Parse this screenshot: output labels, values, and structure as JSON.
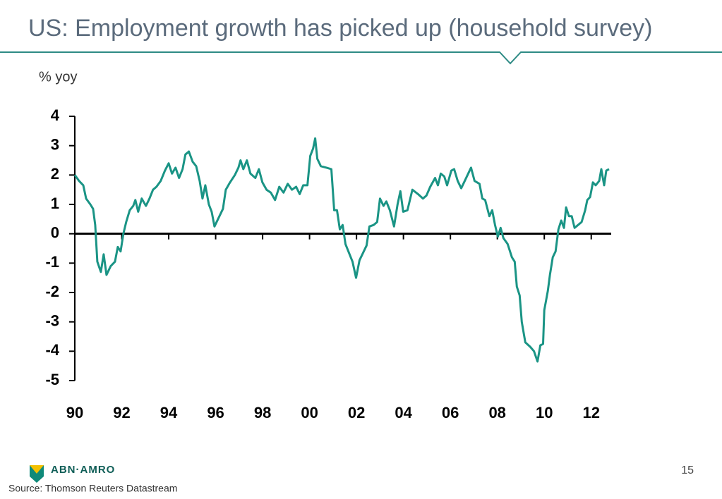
{
  "slide": {
    "logo": "ABN·AMRO",
    "page_number": "15",
    "source": "Source: Thomson Reuters Datastream"
  },
  "chart_data": {
    "type": "line",
    "title": "US: Employment growth has picked up (household survey)",
    "y_label": "% yoy",
    "color": "#1a9485",
    "xlim": [
      1990,
      2012.85
    ],
    "ylim": [
      -5,
      4
    ],
    "yticks": [
      -5,
      -4,
      -3,
      -2,
      -1,
      0,
      1,
      2,
      3,
      4
    ],
    "xticks": [
      {
        "value": 1990,
        "label": "90"
      },
      {
        "value": 1992,
        "label": "92"
      },
      {
        "value": 1994,
        "label": "94"
      },
      {
        "value": 1996,
        "label": "96"
      },
      {
        "value": 1998,
        "label": "98"
      },
      {
        "value": 2000,
        "label": "00"
      },
      {
        "value": 2002,
        "label": "02"
      },
      {
        "value": 2004,
        "label": "04"
      },
      {
        "value": 2006,
        "label": "06"
      },
      {
        "value": 2008,
        "label": "08"
      },
      {
        "value": 2010,
        "label": "10"
      },
      {
        "value": 2012,
        "label": "12"
      }
    ],
    "x": [
      1990.0,
      1990.18,
      1990.36,
      1990.48,
      1990.66,
      1990.78,
      1990.87,
      1990.96,
      1991.11,
      1991.23,
      1991.35,
      1991.53,
      1991.71,
      1991.83,
      1991.95,
      1992.07,
      1992.19,
      1992.34,
      1992.49,
      1992.58,
      1992.7,
      1992.85,
      1993.03,
      1993.18,
      1993.33,
      1993.48,
      1993.66,
      1993.84,
      1994.0,
      1994.14,
      1994.29,
      1994.44,
      1994.59,
      1994.71,
      1994.86,
      1995.02,
      1995.17,
      1995.32,
      1995.44,
      1995.56,
      1995.71,
      1995.83,
      1995.95,
      1996.13,
      1996.31,
      1996.43,
      1996.61,
      1996.82,
      1996.97,
      1997.06,
      1997.18,
      1997.33,
      1997.48,
      1997.69,
      1997.84,
      1997.99,
      1998.17,
      1998.35,
      1998.53,
      1998.71,
      1998.89,
      1999.07,
      1999.25,
      1999.43,
      1999.58,
      1999.73,
      1999.91,
      2000.03,
      2000.15,
      2000.24,
      2000.33,
      2000.48,
      2000.72,
      2000.93,
      2001.05,
      2001.17,
      2001.29,
      2001.41,
      2001.53,
      2001.68,
      2001.83,
      2001.98,
      2002.13,
      2002.28,
      2002.43,
      2002.55,
      2002.73,
      2002.88,
      2003.0,
      2003.15,
      2003.27,
      2003.42,
      2003.6,
      2003.75,
      2003.87,
      2003.99,
      2004.17,
      2004.38,
      2004.62,
      2004.83,
      2004.98,
      2005.14,
      2005.35,
      2005.47,
      2005.59,
      2005.74,
      2005.86,
      2006.04,
      2006.16,
      2006.31,
      2006.46,
      2006.61,
      2006.76,
      2006.88,
      2007.03,
      2007.24,
      2007.36,
      2007.48,
      2007.66,
      2007.78,
      2007.9,
      2008.02,
      2008.14,
      2008.26,
      2008.44,
      2008.62,
      2008.74,
      2008.83,
      2008.95,
      2009.04,
      2009.19,
      2009.4,
      2009.56,
      2009.71,
      2009.83,
      2009.95,
      2010.0,
      2010.15,
      2010.24,
      2010.36,
      2010.48,
      2010.6,
      2010.72,
      2010.84,
      2010.93,
      2011.05,
      2011.17,
      2011.29,
      2011.44,
      2011.59,
      2011.74,
      2011.83,
      2011.95,
      2012.07,
      2012.19,
      2012.34,
      2012.43,
      2012.55,
      2012.64,
      2012.76
    ],
    "values": [
      2.0,
      1.8,
      1.65,
      1.2,
      1.0,
      0.85,
      0.3,
      -0.95,
      -1.3,
      -0.7,
      -1.4,
      -1.1,
      -0.95,
      -0.45,
      -0.6,
      0.0,
      0.4,
      0.8,
      0.95,
      1.15,
      0.75,
      1.2,
      0.95,
      1.2,
      1.5,
      1.6,
      1.8,
      2.15,
      2.4,
      2.05,
      2.25,
      1.9,
      2.2,
      2.7,
      2.8,
      2.45,
      2.3,
      1.8,
      1.2,
      1.65,
      1.0,
      0.75,
      0.25,
      0.55,
      0.85,
      1.5,
      1.75,
      2.0,
      2.25,
      2.5,
      2.2,
      2.5,
      2.05,
      1.9,
      2.2,
      1.75,
      1.5,
      1.4,
      1.15,
      1.6,
      1.4,
      1.7,
      1.5,
      1.6,
      1.35,
      1.65,
      1.65,
      2.65,
      2.9,
      3.25,
      2.55,
      2.3,
      2.25,
      2.2,
      0.8,
      0.8,
      0.15,
      0.3,
      -0.35,
      -0.65,
      -0.95,
      -1.5,
      -0.9,
      -0.65,
      -0.4,
      0.25,
      0.3,
      0.4,
      1.2,
      0.95,
      1.1,
      0.8,
      0.25,
      1.0,
      1.45,
      0.75,
      0.8,
      1.5,
      1.35,
      1.2,
      1.3,
      1.6,
      1.9,
      1.65,
      2.05,
      1.95,
      1.65,
      2.15,
      2.2,
      1.8,
      1.55,
      1.8,
      2.05,
      2.25,
      1.8,
      1.7,
      1.2,
      1.15,
      0.6,
      0.8,
      0.3,
      -0.1,
      0.2,
      -0.15,
      -0.35,
      -0.8,
      -0.95,
      -1.8,
      -2.1,
      -3.0,
      -3.7,
      -3.85,
      -4.0,
      -4.35,
      -3.8,
      -3.75,
      -2.6,
      -1.95,
      -1.4,
      -0.8,
      -0.6,
      0.15,
      0.45,
      0.2,
      0.9,
      0.6,
      0.6,
      0.2,
      0.3,
      0.4,
      0.8,
      1.15,
      1.25,
      1.75,
      1.65,
      1.8,
      2.2,
      1.65,
      2.15,
      2.2
    ]
  }
}
